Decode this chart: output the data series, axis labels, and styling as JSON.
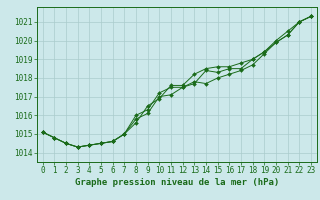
{
  "title": "Graphe pression niveau de la mer (hPa)",
  "background_color": "#cce8ea",
  "plot_bg_color": "#cce8ea",
  "grid_color": "#aacccc",
  "line_color": "#1a6b1a",
  "xlim": [
    -0.5,
    23.5
  ],
  "ylim": [
    1013.5,
    1021.8
  ],
  "yticks": [
    1014,
    1015,
    1016,
    1017,
    1018,
    1019,
    1020,
    1021
  ],
  "xticks": [
    0,
    1,
    2,
    3,
    4,
    5,
    6,
    7,
    8,
    9,
    10,
    11,
    12,
    13,
    14,
    15,
    16,
    17,
    18,
    19,
    20,
    21,
    22,
    23
  ],
  "series": [
    [
      1015.1,
      1014.8,
      1014.5,
      1014.3,
      1014.4,
      1014.5,
      1014.6,
      1015.0,
      1015.8,
      1016.1,
      1017.0,
      1017.1,
      1017.5,
      1017.8,
      1017.7,
      1018.0,
      1018.2,
      1018.4,
      1018.7,
      1019.3,
      1019.9,
      1020.3,
      1021.0,
      1021.3
    ],
    [
      1015.1,
      1014.8,
      1014.5,
      1014.3,
      1014.4,
      1014.5,
      1014.6,
      1015.0,
      1016.0,
      1016.3,
      1017.2,
      1017.5,
      1017.5,
      1017.7,
      1018.4,
      1018.3,
      1018.5,
      1018.5,
      1019.0,
      1019.4,
      1020.0,
      1020.5,
      1021.0,
      1021.3
    ],
    [
      1015.1,
      1014.8,
      1014.5,
      1014.3,
      1014.4,
      1014.5,
      1014.6,
      1015.0,
      1015.6,
      1016.5,
      1016.9,
      1017.6,
      1017.6,
      1018.2,
      1018.5,
      1018.6,
      1018.6,
      1018.8,
      1019.0,
      1019.4,
      1019.9,
      1020.3,
      1021.0,
      1021.3
    ]
  ],
  "tick_fontsize": 5.5,
  "xlabel_fontsize": 6.5
}
